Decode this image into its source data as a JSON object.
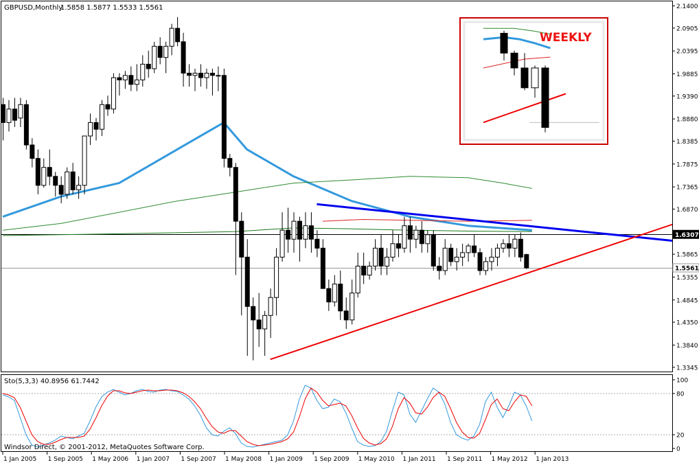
{
  "header": {
    "symbol": "GBPUSD,Monthly",
    "ohlc": "1.5858 1.5877 1.5533 1.5561"
  },
  "indicator": {
    "label": "Sto(5,3,3) 40.8956 61.7442",
    "levels": [
      "100",
      "80",
      "20",
      "0"
    ]
  },
  "copyright": "Windsor Direct, © 2001-2012, MetaQuotes Software Corp.",
  "inset": {
    "label": "WEEKLY"
  },
  "colors": {
    "bull": "#ffffff",
    "bear": "#000000",
    "blue_ma": "#3399dd",
    "dark_green_ma": "#1a7a1a",
    "green_ma": "#2e8b2e",
    "red_ma": "#dd2222",
    "trendline_blue": "#0000ee",
    "trendline_red": "#ee0000",
    "stoch_main": "#3399dd",
    "stoch_signal": "#ee0000",
    "inset_border": "#cc0000",
    "inset_label": "#ee1111"
  },
  "chart_data": {
    "type": "candlestick",
    "price_axis": {
      "ticks": [
        "2.1400",
        "2.0905",
        "2.0395",
        "1.9885",
        "1.9390",
        "1.8880",
        "1.8385",
        "1.7875",
        "1.7365",
        "1.6870",
        "1.5865",
        "1.5355",
        "1.4845",
        "1.4350",
        "1.3840",
        "1.3345"
      ],
      "range": [
        1.325,
        2.15
      ],
      "markers": [
        {
          "label": "1.6307",
          "value": 1.6307,
          "style": "dark"
        },
        {
          "label": "1.5561",
          "value": 1.5561,
          "style": "light"
        }
      ]
    },
    "time_axis": {
      "labels": [
        "1 Jan 2005",
        "1 Sep 2005",
        "1 May 2006",
        "1 Jan 2007",
        "1 Sep 2007",
        "1 May 2008",
        "1 Jan 2009",
        "1 Sep 2009",
        "1 May 2010",
        "1 Jan 2011",
        "1 Sep 2011",
        "1 May 2012",
        "1 Jan 2013"
      ]
    },
    "candles": [
      [
        1.92,
        1.935,
        1.84,
        1.88
      ],
      [
        1.88,
        1.93,
        1.86,
        1.91
      ],
      [
        1.91,
        1.935,
        1.87,
        1.885
      ],
      [
        1.89,
        1.935,
        1.87,
        1.92
      ],
      [
        1.92,
        1.93,
        1.82,
        1.83
      ],
      [
        1.83,
        1.845,
        1.78,
        1.8
      ],
      [
        1.8,
        1.82,
        1.72,
        1.74
      ],
      [
        1.74,
        1.8,
        1.735,
        1.78
      ],
      [
        1.78,
        1.82,
        1.74,
        1.76
      ],
      [
        1.76,
        1.77,
        1.715,
        1.74
      ],
      [
        1.74,
        1.76,
        1.7,
        1.72
      ],
      [
        1.72,
        1.78,
        1.71,
        1.77
      ],
      [
        1.77,
        1.79,
        1.72,
        1.73
      ],
      [
        1.73,
        1.76,
        1.71,
        1.74
      ],
      [
        1.74,
        1.85,
        1.72,
        1.85
      ],
      [
        1.85,
        1.9,
        1.83,
        1.88
      ],
      [
        1.88,
        1.89,
        1.84,
        1.865
      ],
      [
        1.865,
        1.93,
        1.85,
        1.92
      ],
      [
        1.92,
        1.94,
        1.895,
        1.91
      ],
      [
        1.91,
        1.99,
        1.9,
        1.98
      ],
      [
        1.98,
        1.99,
        1.94,
        1.975
      ],
      [
        1.975,
        1.995,
        1.955,
        1.985
      ],
      [
        1.985,
        2.005,
        1.95,
        1.965
      ],
      [
        1.965,
        2.01,
        1.95,
        1.975
      ],
      [
        1.975,
        2.03,
        1.96,
        2.01
      ],
      [
        2.01,
        2.04,
        1.98,
        2.0
      ],
      [
        2.0,
        2.06,
        1.99,
        2.05
      ],
      [
        2.05,
        2.07,
        2.01,
        2.025
      ],
      [
        2.025,
        2.06,
        1.99,
        2.05
      ],
      [
        2.05,
        2.1,
        2.03,
        2.09
      ],
      [
        2.09,
        2.115,
        2.05,
        2.06
      ],
      [
        2.06,
        2.08,
        1.96,
        1.99
      ],
      [
        1.99,
        2.01,
        1.96,
        1.985
      ],
      [
        1.985,
        2.0,
        1.95,
        1.99
      ],
      [
        1.99,
        2.01,
        1.96,
        1.98
      ],
      [
        1.98,
        2.0,
        1.955,
        1.99
      ],
      [
        1.99,
        2.0,
        1.94,
        1.985
      ],
      [
        1.985,
        2.005,
        1.95,
        1.985
      ],
      [
        1.985,
        2.0,
        1.78,
        1.8
      ],
      [
        1.8,
        1.81,
        1.76,
        1.78
      ],
      [
        1.78,
        1.79,
        1.54,
        1.66
      ],
      [
        1.66,
        1.68,
        1.45,
        1.58
      ],
      [
        1.58,
        1.62,
        1.36,
        1.47
      ],
      [
        1.47,
        1.49,
        1.35,
        1.44
      ],
      [
        1.44,
        1.5,
        1.38,
        1.42
      ],
      [
        1.42,
        1.46,
        1.36,
        1.45
      ],
      [
        1.45,
        1.51,
        1.4,
        1.49
      ],
      [
        1.49,
        1.6,
        1.45,
        1.58
      ],
      [
        1.58,
        1.68,
        1.57,
        1.64
      ],
      [
        1.64,
        1.69,
        1.59,
        1.62
      ],
      [
        1.62,
        1.68,
        1.59,
        1.66
      ],
      [
        1.66,
        1.67,
        1.57,
        1.62
      ],
      [
        1.62,
        1.68,
        1.6,
        1.65
      ],
      [
        1.65,
        1.68,
        1.59,
        1.62
      ],
      [
        1.62,
        1.64,
        1.58,
        1.6
      ],
      [
        1.6,
        1.62,
        1.51,
        1.51
      ],
      [
        1.51,
        1.53,
        1.46,
        1.48
      ],
      [
        1.48,
        1.54,
        1.47,
        1.52
      ],
      [
        1.52,
        1.55,
        1.44,
        1.46
      ],
      [
        1.46,
        1.49,
        1.42,
        1.44
      ],
      [
        1.44,
        1.53,
        1.43,
        1.5
      ],
      [
        1.5,
        1.59,
        1.49,
        1.56
      ],
      [
        1.56,
        1.59,
        1.52,
        1.54
      ],
      [
        1.54,
        1.57,
        1.53,
        1.56
      ],
      [
        1.56,
        1.62,
        1.55,
        1.6
      ],
      [
        1.6,
        1.63,
        1.54,
        1.56
      ],
      [
        1.56,
        1.6,
        1.54,
        1.58
      ],
      [
        1.58,
        1.64,
        1.57,
        1.61
      ],
      [
        1.61,
        1.63,
        1.58,
        1.6
      ],
      [
        1.6,
        1.67,
        1.59,
        1.65
      ],
      [
        1.65,
        1.67,
        1.59,
        1.62
      ],
      [
        1.62,
        1.65,
        1.6,
        1.64
      ],
      [
        1.64,
        1.66,
        1.59,
        1.61
      ],
      [
        1.61,
        1.64,
        1.59,
        1.63
      ],
      [
        1.63,
        1.64,
        1.55,
        1.56
      ],
      [
        1.56,
        1.58,
        1.53,
        1.55
      ],
      [
        1.55,
        1.62,
        1.54,
        1.6
      ],
      [
        1.6,
        1.61,
        1.56,
        1.57
      ],
      [
        1.57,
        1.6,
        1.55,
        1.58
      ],
      [
        1.58,
        1.61,
        1.56,
        1.59
      ],
      [
        1.59,
        1.61,
        1.57,
        1.605
      ],
      [
        1.605,
        1.63,
        1.58,
        1.59
      ],
      [
        1.59,
        1.6,
        1.54,
        1.55
      ],
      [
        1.55,
        1.58,
        1.54,
        1.57
      ],
      [
        1.57,
        1.6,
        1.55,
        1.58
      ],
      [
        1.58,
        1.61,
        1.56,
        1.6
      ],
      [
        1.6,
        1.62,
        1.59,
        1.61
      ],
      [
        1.61,
        1.63,
        1.58,
        1.6
      ],
      [
        1.6,
        1.63,
        1.58,
        1.62
      ],
      [
        1.62,
        1.635,
        1.57,
        1.58
      ],
      [
        1.5858,
        1.5877,
        1.5533,
        1.5561
      ]
    ],
    "moving_averages": [
      {
        "color": "blue_ma",
        "points": [
          [
            0,
            1.67
          ],
          [
            10,
            1.715
          ],
          [
            20,
            1.745
          ],
          [
            30,
            1.82
          ],
          [
            38,
            1.88
          ],
          [
            42,
            1.82
          ],
          [
            50,
            1.76
          ],
          [
            60,
            1.705
          ],
          [
            70,
            1.67
          ],
          [
            80,
            1.65
          ],
          [
            91,
            1.64
          ]
        ]
      },
      {
        "color": "green_ma",
        "points": [
          [
            0,
            1.64
          ],
          [
            10,
            1.655
          ],
          [
            20,
            1.68
          ],
          [
            30,
            1.705
          ],
          [
            40,
            1.725
          ],
          [
            50,
            1.745
          ],
          [
            60,
            1.752
          ],
          [
            70,
            1.76
          ],
          [
            80,
            1.757
          ],
          [
            86,
            1.745
          ],
          [
            91,
            1.733
          ]
        ]
      },
      {
        "color": "dark_green_ma",
        "points": [
          [
            0,
            1.628
          ],
          [
            20,
            1.632
          ],
          [
            40,
            1.637
          ],
          [
            50,
            1.645
          ],
          [
            60,
            1.643
          ],
          [
            70,
            1.64
          ],
          [
            80,
            1.638
          ],
          [
            91,
            1.637
          ]
        ]
      },
      {
        "color": "red_ma",
        "points": [
          [
            55,
            1.66
          ],
          [
            62,
            1.664
          ],
          [
            70,
            1.662
          ],
          [
            80,
            1.66
          ],
          [
            91,
            1.662
          ]
        ]
      }
    ],
    "trendlines": [
      {
        "color": "trendline_blue",
        "from": [
          54,
          1.698
        ],
        "to": [
          120,
          1.61
        ]
      },
      {
        "color": "trendline_red",
        "from": [
          46,
          1.352
        ],
        "to": [
          120,
          1.674
        ]
      }
    ],
    "stochastic": {
      "range": [
        0,
        100
      ],
      "main": [
        78,
        75,
        70,
        45,
        20,
        5,
        2,
        5,
        8,
        12,
        18,
        16,
        14,
        18,
        22,
        40,
        60,
        75,
        82,
        86,
        82,
        78,
        80,
        84,
        86,
        83,
        82,
        85,
        86,
        84,
        83,
        78,
        72,
        62,
        48,
        30,
        20,
        18,
        25,
        30,
        22,
        8,
        3,
        2,
        4,
        6,
        8,
        10,
        12,
        20,
        40,
        72,
        92,
        88,
        70,
        58,
        60,
        72,
        68,
        52,
        30,
        10,
        5,
        3,
        4,
        10,
        25,
        55,
        82,
        78,
        50,
        38,
        55,
        72,
        88,
        82,
        65,
        38,
        20,
        15,
        12,
        18,
        35,
        68,
        82,
        60,
        45,
        62,
        82,
        78,
        62,
        40
      ],
      "signal": [
        80,
        78,
        74,
        60,
        40,
        20,
        10,
        6,
        6,
        9,
        13,
        16,
        16,
        16,
        18,
        28,
        44,
        62,
        76,
        84,
        84,
        81,
        80,
        82,
        84,
        85,
        84,
        84,
        85,
        85,
        84,
        81,
        76,
        68,
        58,
        44,
        32,
        24,
        22,
        26,
        26,
        18,
        10,
        6,
        4,
        5,
        6,
        8,
        10,
        14,
        24,
        46,
        72,
        88,
        82,
        70,
        62,
        64,
        66,
        62,
        48,
        30,
        15,
        8,
        5,
        7,
        14,
        32,
        58,
        74,
        66,
        52,
        50,
        60,
        74,
        82,
        76,
        58,
        38,
        24,
        16,
        15,
        22,
        42,
        64,
        72,
        58,
        55,
        68,
        78,
        76,
        62
      ]
    }
  },
  "inset_chart": {
    "candles": [
      [
        2.07,
        2.075,
        2.015,
        2.03
      ],
      [
        2.03,
        2.035,
        1.985,
        2.0
      ],
      [
        2.0,
        2.03,
        1.955,
        1.96
      ],
      [
        1.96,
        2.005,
        1.94,
        2.0
      ],
      [
        2.0,
        2.005,
        1.87,
        1.88
      ]
    ],
    "ma_blue": [
      [
        -2,
        2.058
      ],
      [
        0,
        2.062
      ],
      [
        1.5,
        2.058
      ],
      [
        3,
        2.05
      ],
      [
        4.5,
        2.04
      ]
    ],
    "ma_green": [
      [
        -2,
        2.08
      ],
      [
        1,
        2.08
      ],
      [
        3,
        2.074
      ],
      [
        4.5,
        2.068
      ]
    ],
    "ma_red": [
      [
        -2,
        2.0
      ],
      [
        2,
        2.018
      ],
      [
        4.5,
        2.022
      ]
    ],
    "trend_red": [
      [
        -2,
        1.89
      ],
      [
        6.0,
        1.948
      ]
    ],
    "support_level": 1.89
  }
}
